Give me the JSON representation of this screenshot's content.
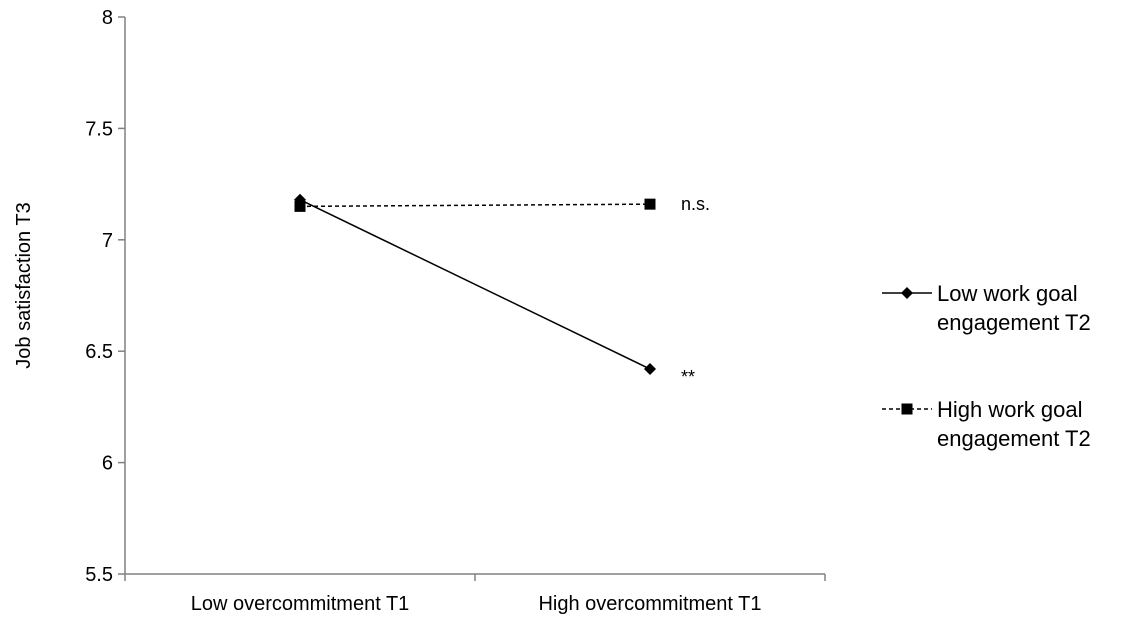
{
  "chart_data": {
    "type": "line",
    "title": "",
    "xlabel": "",
    "ylabel": "Job satisfaction T3",
    "categories": [
      "Low overcommitment T1",
      "High overcommitment T1"
    ],
    "ylim": [
      5.5,
      8
    ],
    "yticks": [
      "5.5",
      "6",
      "6.5",
      "7",
      "7.5",
      "8"
    ],
    "grid": false,
    "legend_position": "right",
    "series": [
      {
        "name": "Low work goal engagement T2",
        "legend_lines": [
          "Low work goal",
          "engagement T2"
        ],
        "values": [
          7.18,
          6.42
        ],
        "marker": "diamond",
        "line_style": "solid",
        "color": "#000000"
      },
      {
        "name": "High work goal engagement T2",
        "legend_lines": [
          "High work goal",
          "engagement T2"
        ],
        "values": [
          7.15,
          7.16
        ],
        "marker": "square",
        "line_style": "dashed",
        "color": "#000000"
      }
    ],
    "annotations": [
      {
        "text": "n.s.",
        "series": 1,
        "category": 1
      },
      {
        "text": "**",
        "series": 0,
        "category": 1
      }
    ]
  }
}
